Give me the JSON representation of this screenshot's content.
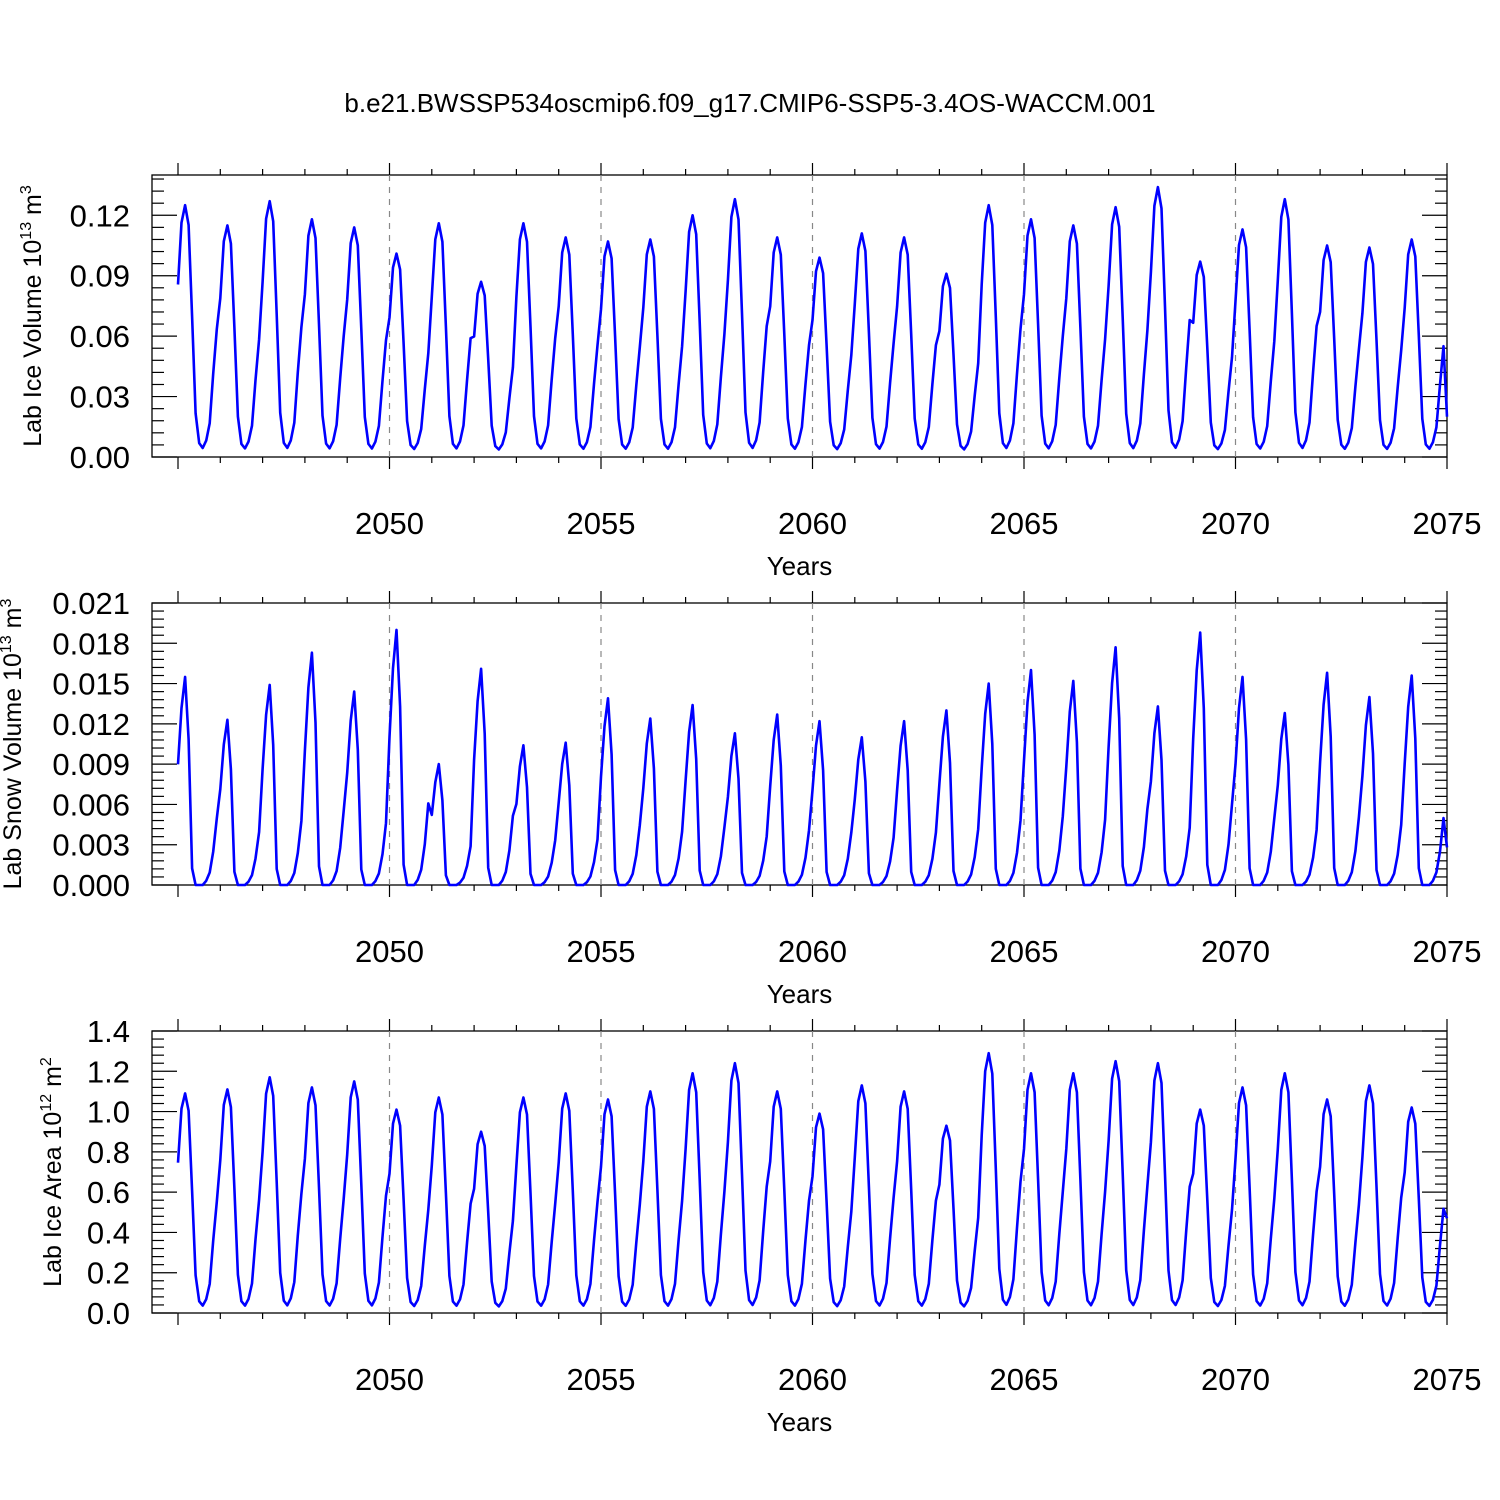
{
  "title": "b.e21.BWSSP534oscmip6.f09_g17.CMIP6-SSP5-3.4OS-WACCM.001",
  "colors": {
    "series": "#0000ff",
    "axis": "#000000",
    "refline": "#888888"
  },
  "chart_data": [
    {
      "type": "line",
      "title": "b.e21.BWSSP534oscmip6.f09_g17.CMIP6-SSP5-3.4OS-WACCM.001",
      "xlabel": "Years",
      "ylabel_parts": {
        "prefix": "Lab Ice Volume 10",
        "exp": "13",
        "unit": " m",
        "unit_exp": "3"
      },
      "ylabel_text": "Lab Ice Volume 10^13 m^3",
      "xlim": [
        2045.0,
        2075.0
      ],
      "ylim": [
        0.0,
        0.14
      ],
      "x_ticks": [
        2050,
        2055,
        2060,
        2065,
        2070,
        2075
      ],
      "y_ticks": [
        "0.00",
        "0.03",
        "0.06",
        "0.09",
        "0.12"
      ],
      "y_tick_values": [
        0.0,
        0.03,
        0.06,
        0.09,
        0.12
      ],
      "refline_x": [
        2050,
        2055,
        2060,
        2065,
        2070
      ],
      "series": [
        {
          "name": "Lab Ice Volume",
          "x_start": 2045.0,
          "x_step_months": 1,
          "annual_minimum": 0.002,
          "annual_peaks": [
            0.125,
            0.115,
            0.127,
            0.118,
            0.114,
            0.101,
            0.116,
            0.087,
            0.116,
            0.109,
            0.107,
            0.108,
            0.12,
            0.128,
            0.109,
            0.099,
            0.111,
            0.109,
            0.091,
            0.125,
            0.118,
            0.115,
            0.124,
            0.134,
            0.097,
            0.113,
            0.128,
            0.105,
            0.104,
            0.108
          ],
          "end_value": 0.02
        }
      ]
    },
    {
      "type": "line",
      "xlabel": "Years",
      "ylabel_parts": {
        "prefix": "Lab Snow Volume 10",
        "exp": "13",
        "unit": " m",
        "unit_exp": "3"
      },
      "ylabel_text": "Lab Snow Volume 10^13 m^3",
      "xlim": [
        2045.0,
        2075.0
      ],
      "ylim": [
        0.0,
        0.021
      ],
      "x_ticks": [
        2050,
        2055,
        2060,
        2065,
        2070,
        2075
      ],
      "y_ticks": [
        "0.000",
        "0.003",
        "0.006",
        "0.009",
        "0.012",
        "0.015",
        "0.018",
        "0.021"
      ],
      "y_tick_values": [
        0.0,
        0.003,
        0.006,
        0.009,
        0.012,
        0.015,
        0.018,
        0.021
      ],
      "refline_x": [
        2050,
        2055,
        2060,
        2065,
        2070
      ],
      "series": [
        {
          "name": "Lab Snow Volume",
          "x_start": 2045.0,
          "x_step_months": 1,
          "annual_minimum": 0.0,
          "annual_peaks": [
            0.0155,
            0.0123,
            0.0149,
            0.0173,
            0.0144,
            0.019,
            0.009,
            0.0161,
            0.0104,
            0.0106,
            0.0139,
            0.0124,
            0.0134,
            0.0113,
            0.0127,
            0.0122,
            0.011,
            0.0122,
            0.013,
            0.015,
            0.016,
            0.0152,
            0.0177,
            0.0133,
            0.0188,
            0.0155,
            0.0128,
            0.0158,
            0.014,
            0.0156
          ],
          "end_value": 0.0028
        }
      ]
    },
    {
      "type": "line",
      "xlabel": "Years",
      "ylabel_parts": {
        "prefix": "Lab Ice Area 10",
        "exp": "12",
        "unit": " m",
        "unit_exp": "2"
      },
      "ylabel_text": "Lab Ice Area 10^12 m^2",
      "xlim": [
        2045.0,
        2075.0
      ],
      "ylim": [
        0.0,
        1.4
      ],
      "x_ticks": [
        2050,
        2055,
        2060,
        2065,
        2070,
        2075
      ],
      "y_ticks": [
        "0.0",
        "0.2",
        "0.4",
        "0.6",
        "0.8",
        "1.0",
        "1.2",
        "1.4"
      ],
      "y_tick_values": [
        0.0,
        0.2,
        0.4,
        0.6,
        0.8,
        1.0,
        1.2,
        1.4
      ],
      "refline_x": [
        2050,
        2055,
        2060,
        2065,
        2070
      ],
      "series": [
        {
          "name": "Lab Ice Area",
          "x_start": 2045.0,
          "x_step_months": 1,
          "annual_minimum": 0.015,
          "annual_peaks": [
            1.09,
            1.11,
            1.17,
            1.12,
            1.15,
            1.01,
            1.07,
            0.9,
            1.07,
            1.09,
            1.06,
            1.1,
            1.19,
            1.24,
            1.1,
            0.99,
            1.13,
            1.1,
            0.93,
            1.29,
            1.19,
            1.19,
            1.25,
            1.24,
            1.01,
            1.12,
            1.19,
            1.06,
            1.13,
            1.02
          ],
          "end_value": 0.47
        }
      ]
    }
  ]
}
